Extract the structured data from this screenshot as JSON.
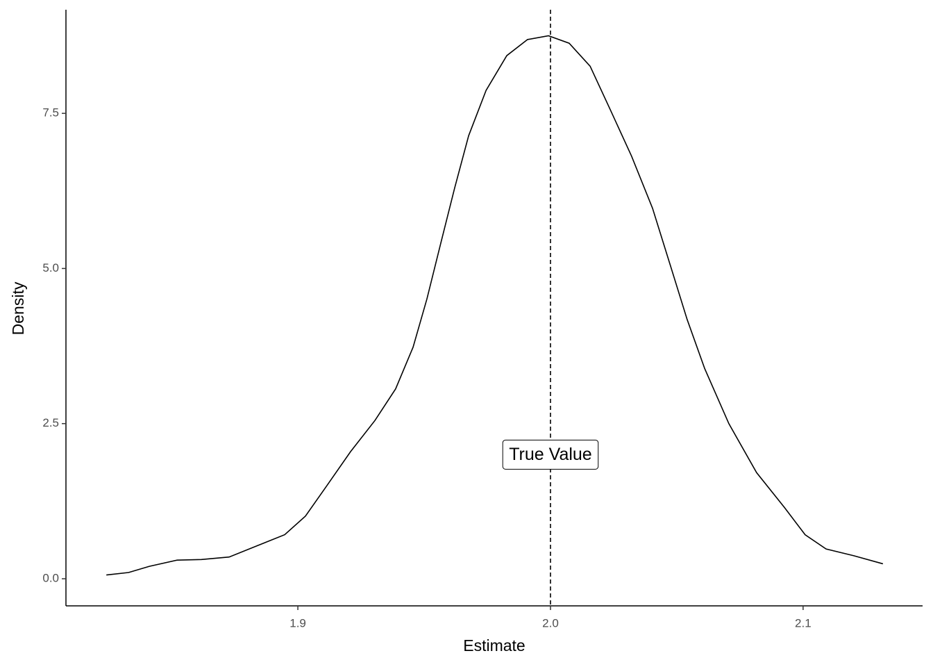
{
  "chart_data": {
    "type": "line",
    "xlabel": "Estimate",
    "ylabel": "Density",
    "x": [
      1.8242,
      1.833,
      1.8412,
      1.8522,
      1.8618,
      1.8728,
      1.8838,
      1.8948,
      1.903,
      1.9113,
      1.9209,
      1.9305,
      1.9387,
      1.9456,
      1.9511,
      1.9566,
      1.9621,
      1.9676,
      1.9745,
      1.9827,
      1.9909,
      1.9992,
      2.0074,
      2.0157,
      2.0239,
      2.0321,
      2.0404,
      2.0473,
      2.0541,
      2.061,
      2.0706,
      2.0816,
      2.0926,
      2.1008,
      2.1091,
      2.1201,
      2.1316
    ],
    "values": [
      0.06,
      0.1,
      0.2,
      0.3,
      0.31,
      0.35,
      0.53,
      0.71,
      1.01,
      1.49,
      2.05,
      2.55,
      3.06,
      3.73,
      4.51,
      5.41,
      6.3,
      7.14,
      7.87,
      8.43,
      8.69,
      8.75,
      8.63,
      8.26,
      7.54,
      6.81,
      5.97,
      5.07,
      4.18,
      3.39,
      2.5,
      1.71,
      1.15,
      0.71,
      0.48,
      0.37,
      0.24
    ],
    "color": "#000000",
    "xlim": [
      1.8082,
      2.1473
    ],
    "ylim": [
      -0.437,
      9.17
    ],
    "xticks": [
      1.9,
      {
        "value": 2.0,
        "label": "2.0"
      },
      2.1
    ],
    "yticks": [
      {
        "value": 0,
        "label": "0.0"
      },
      2.5,
      {
        "value": 5,
        "label": "5.0"
      },
      7.5
    ],
    "vline": 2.0,
    "annotation": {
      "text": "True Value",
      "x": 2.0,
      "y": 2.0
    }
  }
}
